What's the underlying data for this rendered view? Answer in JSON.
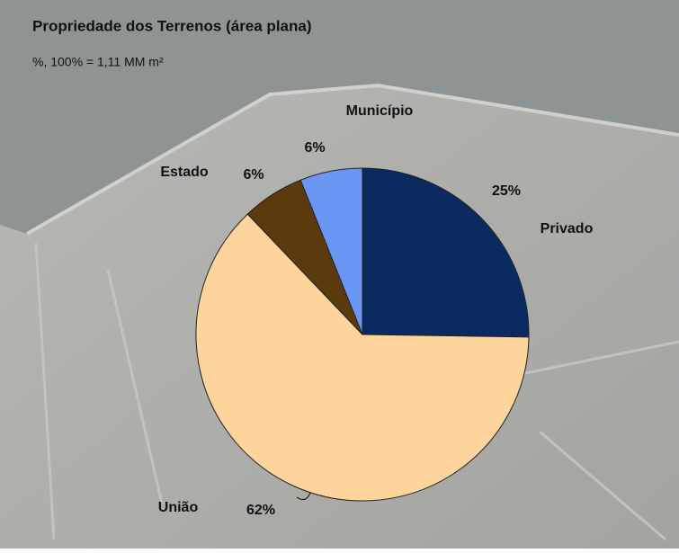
{
  "chart_data": {
    "type": "pie",
    "title": "Propriedade dos Terrenos (área plana)",
    "subtitle": "%, 100% = 1,11 MM m²",
    "categories": [
      "Privado",
      "União",
      "Estado",
      "Município"
    ],
    "values": [
      25,
      62,
      6,
      6
    ],
    "value_labels": [
      "25%",
      "62%",
      "6%",
      "6%"
    ],
    "colors": [
      "#0b2a5f",
      "#fdd49b",
      "#5b3a0e",
      "#6b97f4"
    ]
  }
}
